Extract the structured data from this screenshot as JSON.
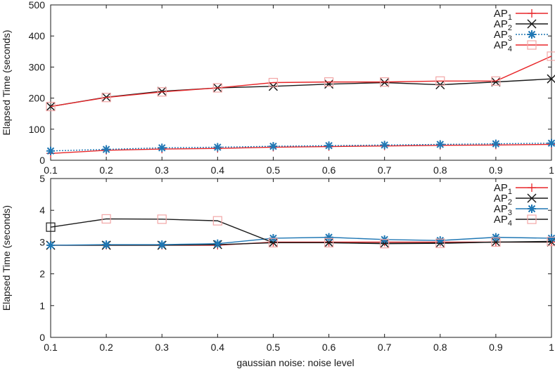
{
  "xlabel_shared": "gaussian noise: noise level",
  "chart_data": [
    {
      "type": "line",
      "ylabel": "Elapsed Time (seconds)",
      "xlabel": "",
      "x": [
        0.1,
        0.2,
        0.3,
        0.4,
        0.5,
        0.6,
        0.7,
        0.8,
        0.9,
        1
      ],
      "xlim": [
        0.1,
        1
      ],
      "ylim": [
        0,
        500
      ],
      "xticks": [
        "0.1",
        "0.2",
        "0.3",
        "0.4",
        "0.5",
        "0.6",
        "0.7",
        "0.8",
        "0.9",
        "1"
      ],
      "yticks": [
        "0",
        "100",
        "200",
        "300",
        "400",
        "500"
      ],
      "grid": false,
      "legend_position": "top-right",
      "series": [
        {
          "name": "AP1",
          "label_base": "AP",
          "label_sub": "1",
          "color": "#e8272a",
          "dash": "",
          "marker": "plus",
          "marker_color": "#e8272a",
          "line_marker_in_legend": true,
          "values": [
            22,
            32,
            36,
            38,
            42,
            44,
            46,
            48,
            49,
            51
          ]
        },
        {
          "name": "AP2",
          "label_base": "AP",
          "label_sub": "2",
          "color": "#1a1a1a",
          "dash": "",
          "marker": "cross",
          "marker_color": "#1a1a1a",
          "line_marker_in_legend": true,
          "values": [
            173,
            203,
            222,
            233,
            238,
            245,
            250,
            243,
            252,
            262
          ]
        },
        {
          "name": "AP3",
          "label_base": "AP",
          "label_sub": "3",
          "color": "#1f77b4",
          "dash": "2,2",
          "marker": "star",
          "marker_color": "#1f77b4",
          "line_marker_in_legend": true,
          "values": [
            30,
            35,
            40,
            42,
            45,
            47,
            49,
            51,
            53,
            55
          ]
        },
        {
          "name": "AP4",
          "label_base": "AP",
          "label_sub": "4",
          "color": "#e8272a",
          "dash": "",
          "marker": "square",
          "marker_color": "#f2a6a6",
          "line_marker_in_legend": true,
          "values": [
            173,
            202,
            220,
            233,
            250,
            252,
            252,
            255,
            255,
            335
          ]
        }
      ]
    },
    {
      "type": "line",
      "ylabel": "Elapsed Time (seconds)",
      "xlabel": "gaussian noise: noise level",
      "x": [
        0.1,
        0.2,
        0.3,
        0.4,
        0.5,
        0.6,
        0.7,
        0.8,
        0.9,
        1
      ],
      "xlim": [
        0.1,
        1
      ],
      "ylim": [
        0,
        5
      ],
      "xticks": [
        "0.1",
        "0.2",
        "0.3",
        "0.4",
        "0.5",
        "0.6",
        "0.7",
        "0.8",
        "0.9",
        "1"
      ],
      "yticks": [
        "0",
        "1",
        "2",
        "3",
        "4",
        "5"
      ],
      "grid": false,
      "legend_position": "top-right",
      "series": [
        {
          "name": "AP1",
          "label_base": "AP",
          "label_sub": "1",
          "color": "#e8272a",
          "dash": "",
          "marker": "plus",
          "marker_color": "#e8272a",
          "values": [
            2.9,
            2.9,
            2.9,
            2.9,
            3.0,
            3.0,
            3.0,
            3.0,
            3.0,
            3.0
          ]
        },
        {
          "name": "AP2",
          "label_base": "AP",
          "label_sub": "2",
          "color": "#1a1a1a",
          "dash": "",
          "marker": "cross",
          "marker_color": "#1a1a1a",
          "values": [
            2.9,
            2.9,
            2.9,
            2.92,
            2.98,
            2.98,
            2.96,
            2.97,
            3.0,
            3.0
          ]
        },
        {
          "name": "AP3",
          "label_base": "AP",
          "label_sub": "3",
          "color": "#1f77b4",
          "dash": "",
          "marker": "star",
          "marker_color": "#1f77b4",
          "values": [
            2.9,
            2.92,
            2.92,
            2.95,
            3.12,
            3.15,
            3.08,
            3.05,
            3.15,
            3.12
          ]
        },
        {
          "name": "AP4",
          "label_base": "AP",
          "label_sub": "4",
          "color": "#1a1a1a",
          "dash": "",
          "marker": "square",
          "marker_color": "#f2a6a6",
          "first_marker_color": "#1a1a1a",
          "values": [
            3.47,
            3.73,
            3.72,
            3.67,
            2.98,
            2.98,
            2.95,
            2.96,
            3.0,
            3.02
          ]
        }
      ]
    }
  ]
}
